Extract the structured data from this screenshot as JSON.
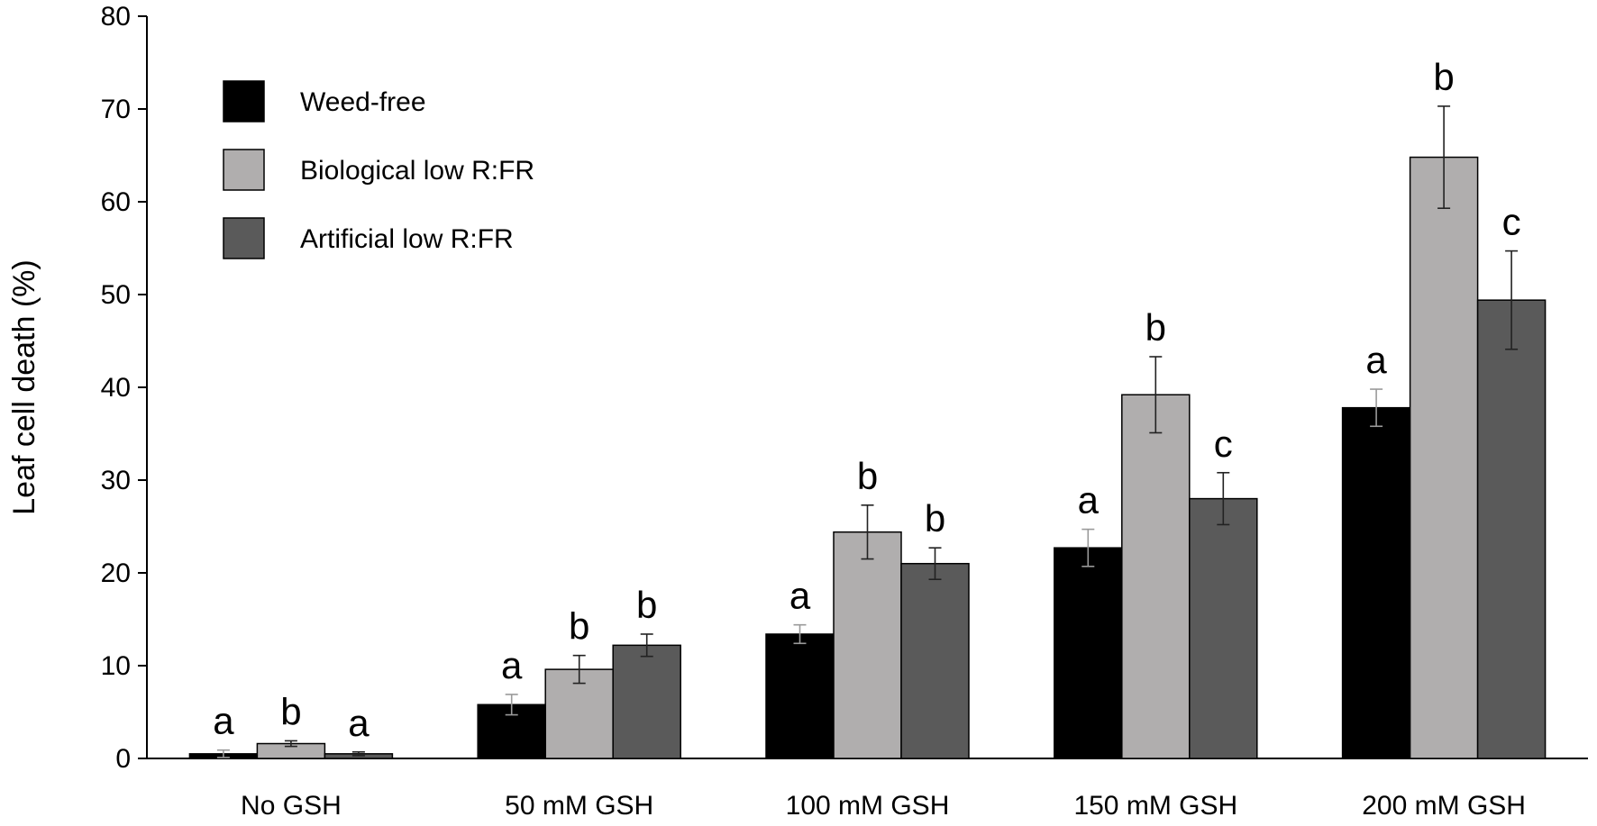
{
  "chart_data": {
    "type": "bar",
    "title": "",
    "xlabel": "",
    "ylabel": "Leaf cell death (%)",
    "ylim": [
      0,
      80
    ],
    "yticks": [
      0,
      10,
      20,
      30,
      40,
      50,
      60,
      70,
      80
    ],
    "grid": false,
    "legend_position": "top-left",
    "categories": [
      "No GSH",
      "50 mM GSH",
      "100 mM GSH",
      "150 mM GSH",
      "200 mM GSH"
    ],
    "series": [
      {
        "name": "Weed-free",
        "color": "#000000",
        "values": [
          0.5,
          5.8,
          13.4,
          22.7,
          37.8
        ],
        "errors": [
          0.4,
          1.1,
          1.0,
          2.0,
          2.0
        ],
        "letters": [
          "a",
          "a",
          "a",
          "a",
          "a"
        ]
      },
      {
        "name": "Biological low R:FR",
        "color": "#b0aeae",
        "values": [
          1.6,
          9.6,
          24.4,
          39.2,
          64.8
        ],
        "errors": [
          0.3,
          1.5,
          2.9,
          4.1,
          5.5
        ],
        "letters": [
          "b",
          "b",
          "b",
          "b",
          "b"
        ]
      },
      {
        "name": "Artificial low R:FR",
        "color": "#5a5a5a",
        "values": [
          0.5,
          12.2,
          21.0,
          28.0,
          49.4
        ],
        "errors": [
          0.2,
          1.2,
          1.7,
          2.8,
          5.3
        ],
        "letters": [
          "a",
          "b",
          "b",
          "c",
          "c"
        ]
      }
    ]
  }
}
